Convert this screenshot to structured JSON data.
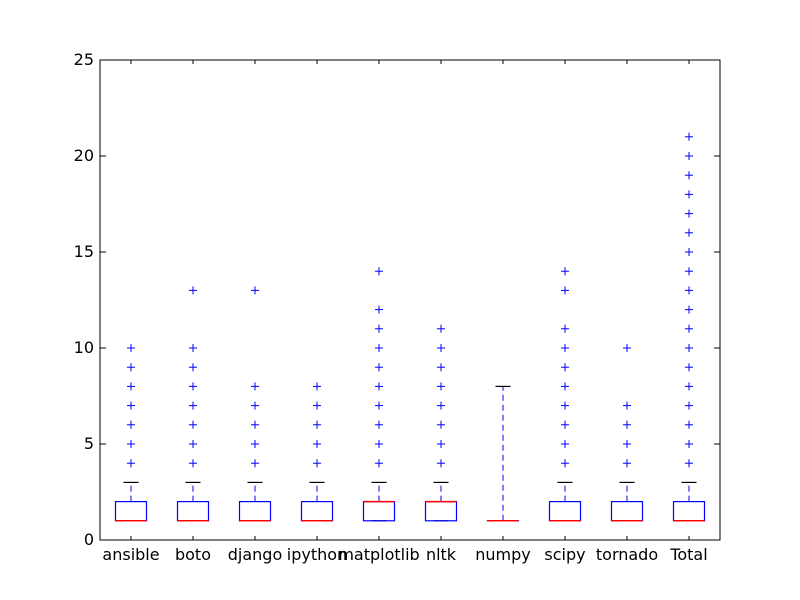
{
  "chart_data": {
    "type": "box",
    "title": "",
    "xlabel": "",
    "ylabel": "",
    "ylim": [
      0,
      25
    ],
    "yticks": [
      0,
      5,
      10,
      15,
      20,
      25
    ],
    "grid": false,
    "categories": [
      "ansible",
      "boto",
      "django",
      "ipython",
      "matplotlib",
      "nltk",
      "numpy",
      "scipy",
      "tornado",
      "Total"
    ],
    "boxes": [
      {
        "name": "ansible",
        "whisker_low": 1,
        "q1": 1,
        "median": 1,
        "q3": 2,
        "whisker_high": 3,
        "outliers": [
          4,
          5,
          6,
          7,
          8,
          9,
          10
        ]
      },
      {
        "name": "boto",
        "whisker_low": 1,
        "q1": 1,
        "median": 1,
        "q3": 2,
        "whisker_high": 3,
        "outliers": [
          4,
          5,
          6,
          7,
          8,
          9,
          10,
          13
        ]
      },
      {
        "name": "django",
        "whisker_low": 1,
        "q1": 1,
        "median": 1,
        "q3": 2,
        "whisker_high": 3,
        "outliers": [
          4,
          5,
          6,
          7,
          8,
          13
        ]
      },
      {
        "name": "ipython",
        "whisker_low": 1,
        "q1": 1,
        "median": 1,
        "q3": 2,
        "whisker_high": 3,
        "outliers": [
          4,
          5,
          6,
          7,
          8
        ]
      },
      {
        "name": "matplotlib",
        "whisker_low": 1,
        "q1": 1,
        "median": 2,
        "q3": 2,
        "whisker_high": 3,
        "outliers": [
          4,
          5,
          6,
          7,
          8,
          9,
          10,
          11,
          12,
          14
        ]
      },
      {
        "name": "nltk",
        "whisker_low": 1,
        "q1": 1,
        "median": 2,
        "q3": 2,
        "whisker_high": 3,
        "outliers": [
          4,
          5,
          6,
          7,
          8,
          9,
          10,
          11
        ]
      },
      {
        "name": "numpy",
        "whisker_low": 1,
        "q1": 1,
        "median": 1,
        "q3": 1,
        "whisker_high": 8,
        "outliers": []
      },
      {
        "name": "scipy",
        "whisker_low": 1,
        "q1": 1,
        "median": 1,
        "q3": 2,
        "whisker_high": 3,
        "outliers": [
          4,
          5,
          6,
          7,
          8,
          9,
          10,
          11,
          13,
          14
        ]
      },
      {
        "name": "tornado",
        "whisker_low": 1,
        "q1": 1,
        "median": 1,
        "q3": 2,
        "whisker_high": 3,
        "outliers": [
          4,
          5,
          6,
          7,
          10
        ]
      },
      {
        "name": "Total",
        "whisker_low": 1,
        "q1": 1,
        "median": 1,
        "q3": 2,
        "whisker_high": 3,
        "outliers": [
          4,
          5,
          6,
          7,
          8,
          9,
          10,
          11,
          12,
          13,
          14,
          15,
          16,
          17,
          18,
          19,
          20,
          21
        ]
      }
    ],
    "colors": {
      "box": "#0000ff",
      "median": "#ff0000",
      "whisker": "#0000ff",
      "cap": "#000000",
      "flier": "#0000ff",
      "axes": "#000000"
    }
  }
}
